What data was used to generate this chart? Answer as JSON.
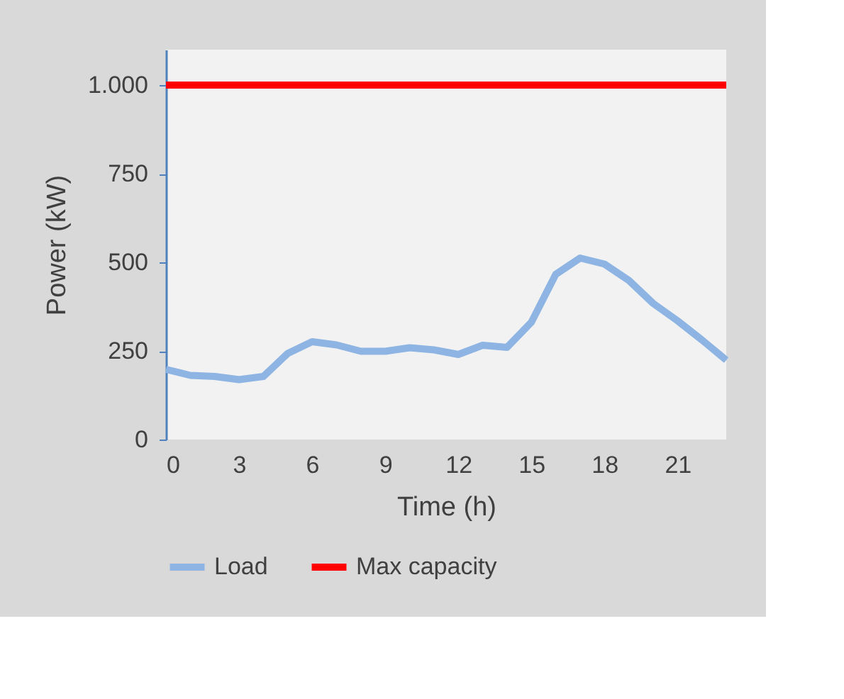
{
  "chart_data": {
    "type": "line",
    "xlabel": "Time (h)",
    "ylabel": "Power (kW)",
    "x": [
      0,
      1,
      2,
      3,
      4,
      5,
      6,
      7,
      8,
      9,
      10,
      11,
      12,
      13,
      14,
      15,
      16,
      17,
      18,
      19,
      20,
      21,
      22,
      23
    ],
    "series": [
      {
        "name": "Load",
        "color": "#8db4e2",
        "values": [
          198,
          181,
          178,
          169,
          178,
          243,
          276,
          267,
          249,
          249,
          259,
          253,
          240,
          266,
          260,
          331,
          466,
          512,
          495,
          449,
          384,
          335,
          281,
          224
        ]
      },
      {
        "name": "Max capacity",
        "color": "#ff0000",
        "x": [
          0,
          23
        ],
        "values": [
          1000,
          1000
        ]
      }
    ],
    "xlim": [
      0,
      23
    ],
    "xticks": [
      0,
      3,
      6,
      9,
      12,
      15,
      18,
      21
    ],
    "ylim": [
      0,
      1100
    ],
    "yticks": [
      0,
      250,
      500,
      750,
      {
        "value": 1000,
        "label": "1.000"
      }
    ],
    "grid": false,
    "legend": "bottom",
    "line_style": "solid",
    "marker": "none"
  }
}
